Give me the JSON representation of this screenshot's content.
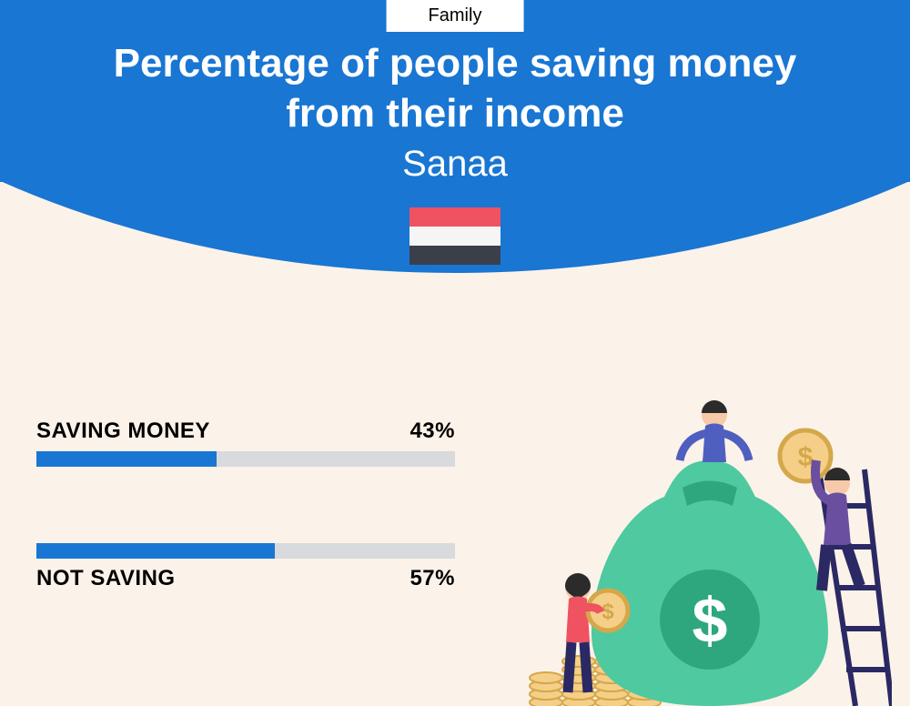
{
  "theme": {
    "primary": "#1976d2",
    "background": "#fbf2e9",
    "track": "#d8dadd",
    "text_dark": "#000000",
    "text_light": "#ffffff"
  },
  "tag": "Family",
  "title_line1": "Percentage of people saving money",
  "title_line2": "from their income",
  "subtitle": "Sanaa",
  "flag": {
    "stripes": [
      "#ef5261",
      "#f5f5f5",
      "#3b3f4a"
    ]
  },
  "chart": {
    "type": "bar-horizontal",
    "bar_color": "#1976d2",
    "track_color": "#d8dadd",
    "label_fontsize": 24,
    "items": [
      {
        "label": "SAVING MONEY",
        "value": 43,
        "display": "43%",
        "labels_above": true
      },
      {
        "label": "NOT SAVING",
        "value": 57,
        "display": "57%",
        "labels_above": false
      }
    ]
  },
  "illustration": {
    "bag_color": "#4fc99f",
    "bag_dark": "#2ea77e",
    "coin_fill": "#f5cf87",
    "coin_stroke": "#d4a84a",
    "ladder": "#2b2963",
    "person_a_shirt": "#4e5fbf",
    "person_a_pants": "#2b2963",
    "person_b_shirt": "#6a4ea0",
    "person_b_pants": "#2b2963",
    "person_c_shirt": "#ef5261",
    "person_c_pants": "#2b2963",
    "skin": "#f7c9a8",
    "hair": "#2b2b2b"
  }
}
